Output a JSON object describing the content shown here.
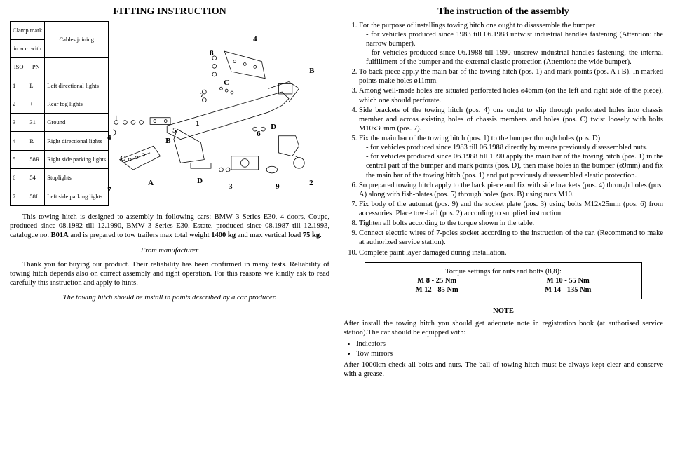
{
  "left": {
    "title": "FITTING INSTRUCTION",
    "wiretable": {
      "header1": "Clamp mark",
      "header2": "in acc. with",
      "header3": "Cables joining",
      "iso": "ISO",
      "pn": "PN",
      "rows": [
        {
          "c1": "1",
          "c2": "L",
          "c3": "Left directional lights"
        },
        {
          "c1": "2",
          "c2": "+",
          "c3": "Rear fog lights"
        },
        {
          "c1": "3",
          "c2": "31",
          "c3": "Ground"
        },
        {
          "c1": "4",
          "c2": "R",
          "c3": "Right directional lights"
        },
        {
          "c1": "5",
          "c2": "58R",
          "c3": "Right side parking lights"
        },
        {
          "c1": "6",
          "c2": "54",
          "c3": "Stoplights"
        },
        {
          "c1": "7",
          "c2": "58L",
          "c3": "Left side parking lights"
        }
      ]
    },
    "diagram_labels": {
      "n1": "1",
      "n2": "2",
      "n3": "3",
      "n4": "4",
      "n5": "5",
      "n6": "6",
      "n7": "7",
      "n8": "8",
      "n9": "9",
      "A": "A",
      "B": "B",
      "C": "C",
      "D": "D",
      "C2": "C",
      "D2": "D",
      "n7b": "7",
      "n4b": "4"
    },
    "body1": "This towing hitch is designed to assembly in following cars: BMW 3 Series E30, 4 doors, Coupe, produced since 08.1982 till 12.1990, BMW 3 Series E30, Estate, produced since 08.1987 till 12.1993, catalogue no. B01A and is prepared to tow trailers max total weight 1400 kg and max vertical load 75 kg.",
    "from_mfr": "From manufacturer",
    "body2": "Thank you for buying our product. Their reliability has been confirmed in many tests. Reliability of towing hitch depends also on correct assembly and right operation. For this reasons we kindly ask to read carefully this instruction and apply to hints.",
    "body3": "The towing hitch should be install in points described by a car producer."
  },
  "right": {
    "title": "The instruction of the assembly",
    "steps": [
      {
        "text": "For the purpose of installings towing hitch one ought to disassemble the bumper",
        "subs": [
          "for vehicles produced since 1983 till 06.1988 untwist industrial handles fastening (Attention: the narrow bumper).",
          "for vehicles produced since 06.1988 till 1990 unscrew industrial handles fastening, the internal fulfillment of the bumper and the external elastic protection (Attention: the wide bumper)."
        ]
      },
      {
        "text": "To back piece apply the main bar of the towing hitch (pos. 1) and mark points (pos. A i B). In marked points make holes ø11mm."
      },
      {
        "text": "Among well-made holes are situated perforated holes ø46mm (on the left and right side of the piece), which one should perforate."
      },
      {
        "text": "Side brackets of the towing hitch (pos. 4) one ought to slip through perforated holes into chassis member and across existing holes of chassis members and holes (pos. C) twist loosely with bolts M10x30mm (pos. 7)."
      },
      {
        "text": "Fix the main bar of the towing hitch (pos. 1) to the bumper through holes (pos. D)",
        "subs": [
          "for vehicles produced since 1983 till 06.1988 directly by means previously disassembled nuts.",
          "for vehicles produced since 06.1988 till 1990 apply the main bar of the towing hitch (pos. 1) in the central part of the bumper and mark points (pos. D), then make holes in the bumper (ø9mm) and fix the main bar of the towing hitch (pos. 1) and put previously disassembled elastic protection."
        ]
      },
      {
        "text": "So prepared towing hitch apply to the back piece and fix with side brackets (pos. 4) through holes (pos. A) along with fish-plates (pos. 5) through holes (pos. B) using nuts M10."
      },
      {
        "text": "Fix body of the automat (pos. 9) and the socket plate (pos. 3) using bolts M12x25mm (pos. 6) from accessories. Place tow-ball (pos. 2) according to supplied instruction."
      },
      {
        "text": "Tighten all bolts according to the torque shown in the table."
      },
      {
        "text": "Connect electric wires of 7-poles socket according to the instruction of the car. (Recommend to make at authorized service station)."
      },
      {
        "text": "Complete paint layer damaged during installation."
      }
    ],
    "torque": {
      "title": "Torque settings for nuts and bolts (8,8):",
      "r1a": "M 8 - 25 Nm",
      "r1b": "M 10 - 55 Nm",
      "r2a": "M 12 - 85 Nm",
      "r2b": "M 14 - 135 Nm"
    },
    "note_title": "NOTE",
    "note1": "After install the towing hitch you should get adequate note in registration book (at authorised service station).The car should be equipped with:",
    "note_bullets": [
      "Indicators",
      "Tow mirrors"
    ],
    "note2": "After 1000km check all bolts and nuts. The ball of towing hitch must be always kept clear and conserve with a grease."
  }
}
